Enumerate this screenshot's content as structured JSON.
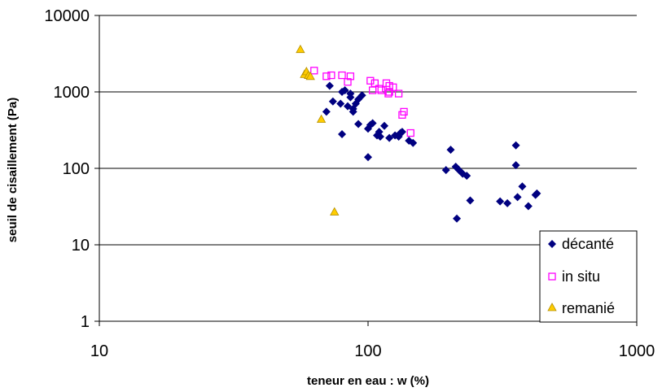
{
  "chart_data": {
    "type": "scatter",
    "xscale": "log",
    "yscale": "log",
    "xlim": [
      10,
      1000
    ],
    "ylim": [
      1,
      10000
    ],
    "xticks": [
      "10",
      "100",
      "1000"
    ],
    "yticks": [
      "1",
      "10",
      "100",
      "1000",
      "10000"
    ],
    "xlabel": "teneur en eau : w (%)",
    "ylabel": "seuil de cisaillement (Pa)",
    "grid": "horizontal",
    "legend_position": "bottom-right",
    "series": [
      {
        "name": "décanté",
        "marker": "diamond",
        "color": "#000080",
        "points": [
          [
            72,
            1200
          ],
          [
            70,
            550
          ],
          [
            74,
            750
          ],
          [
            79,
            700
          ],
          [
            80,
            1000
          ],
          [
            82,
            1050
          ],
          [
            84,
            650
          ],
          [
            86,
            850
          ],
          [
            86,
            950
          ],
          [
            88,
            600
          ],
          [
            90,
            700
          ],
          [
            92,
            800
          ],
          [
            95,
            900
          ],
          [
            88,
            550
          ],
          [
            92,
            380
          ],
          [
            80,
            280
          ],
          [
            100,
            140
          ],
          [
            100,
            330
          ],
          [
            102,
            370
          ],
          [
            104,
            390
          ],
          [
            108,
            270
          ],
          [
            110,
            300
          ],
          [
            111,
            260
          ],
          [
            115,
            360
          ],
          [
            120,
            250
          ],
          [
            126,
            270
          ],
          [
            130,
            260
          ],
          [
            132,
            290
          ],
          [
            134,
            300
          ],
          [
            142,
            230
          ],
          [
            147,
            215
          ],
          [
            195,
            95
          ],
          [
            203,
            175
          ],
          [
            212,
            105
          ],
          [
            218,
            95
          ],
          [
            225,
            85
          ],
          [
            233,
            80
          ],
          [
            214,
            22
          ],
          [
            240,
            38
          ],
          [
            310,
            37
          ],
          [
            330,
            35
          ],
          [
            355,
            200
          ],
          [
            355,
            110
          ],
          [
            360,
            42
          ],
          [
            375,
            58
          ],
          [
            395,
            32
          ],
          [
            420,
            45
          ],
          [
            425,
            47
          ]
        ]
      },
      {
        "name": "in situ",
        "marker": "square-open",
        "color": "#ff00ff",
        "points": [
          [
            63,
            1900
          ],
          [
            70,
            1600
          ],
          [
            73,
            1650
          ],
          [
            80,
            1650
          ],
          [
            86,
            1600
          ],
          [
            84,
            1350
          ],
          [
            102,
            1400
          ],
          [
            106,
            1300
          ],
          [
            104,
            1050
          ],
          [
            110,
            1100
          ],
          [
            112,
            1050
          ],
          [
            117,
            1300
          ],
          [
            120,
            1200
          ],
          [
            124,
            1150
          ],
          [
            120,
            1000
          ],
          [
            119,
            950
          ],
          [
            130,
            950
          ],
          [
            134,
            500
          ],
          [
            136,
            550
          ],
          [
            144,
            290
          ]
        ]
      },
      {
        "name": "remanié",
        "marker": "triangle",
        "color": "#ffcc00",
        "points": [
          [
            56,
            3600
          ],
          [
            58,
            1700
          ],
          [
            59,
            1850
          ],
          [
            60,
            1650
          ],
          [
            61,
            1600
          ],
          [
            67,
            440
          ],
          [
            75,
            27
          ]
        ]
      }
    ]
  }
}
